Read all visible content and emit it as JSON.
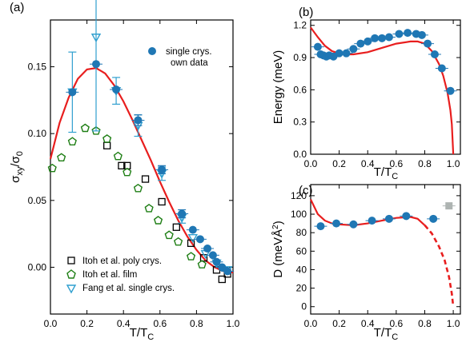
{
  "colors": {
    "fit": "#e81e1e",
    "own": "#1f77b4",
    "itoh_poly": "#000000",
    "itoh_film": "#1e7e14",
    "fang": "#2f9fcf",
    "gray_point": "#aeb4b2",
    "axis": "#000000"
  },
  "chart_data": [
    {
      "panel": "(a)",
      "type": "scatter",
      "xlabel": "T/T_C",
      "ylabel": "σ_xy/σ_0",
      "xlim": [
        0.0,
        1.0
      ],
      "ylim": [
        -0.035,
        0.185
      ],
      "xticks": [
        "0.0",
        "0.2",
        "0.4",
        "0.6",
        "0.8",
        "1.0"
      ],
      "yticks": [
        "0.00",
        "0.05",
        "0.10",
        "0.15"
      ],
      "grid": false,
      "legend_top": {
        "position": "top-right",
        "label_line1": "single crys.",
        "label_line2": "own data"
      },
      "legend_bottom": [
        "Itoh et al. poly crys.",
        "Itoh et al. film",
        "Fang et al. single crys."
      ],
      "series": [
        {
          "name": "single crys. own data",
          "marker": "filled-circle",
          "points": [
            {
              "x": 0.12,
              "y": 0.131,
              "err": 0.0
            },
            {
              "x": 0.25,
              "y": 0.152,
              "err": 0.0
            },
            {
              "x": 0.36,
              "y": 0.133,
              "err": 0.0
            },
            {
              "x": 0.48,
              "y": 0.11,
              "err": 0.004
            },
            {
              "x": 0.61,
              "y": 0.073,
              "err": 0.003
            },
            {
              "x": 0.72,
              "y": 0.04,
              "err": 0.003
            },
            {
              "x": 0.78,
              "y": 0.028,
              "err": 0.0
            },
            {
              "x": 0.82,
              "y": 0.021,
              "err": 0.0
            },
            {
              "x": 0.86,
              "y": 0.014,
              "err": 0.0
            },
            {
              "x": 0.89,
              "y": 0.009,
              "err": 0.0
            },
            {
              "x": 0.91,
              "y": 0.004,
              "err": 0.0
            },
            {
              "x": 0.94,
              "y": 0.0,
              "err": 0.0
            },
            {
              "x": 0.97,
              "y": -0.003,
              "err": 0.0
            }
          ]
        },
        {
          "name": "Itoh et al. poly crys.",
          "marker": "open-square",
          "points": [
            {
              "x": 0.31,
              "y": 0.091
            },
            {
              "x": 0.39,
              "y": 0.076
            },
            {
              "x": 0.42,
              "y": 0.076
            },
            {
              "x": 0.52,
              "y": 0.066
            },
            {
              "x": 0.61,
              "y": 0.049
            },
            {
              "x": 0.69,
              "y": 0.03
            },
            {
              "x": 0.77,
              "y": 0.018
            },
            {
              "x": 0.84,
              "y": 0.007
            },
            {
              "x": 0.91,
              "y": -0.002
            },
            {
              "x": 0.94,
              "y": -0.009
            },
            {
              "x": 0.97,
              "y": -0.005
            }
          ]
        },
        {
          "name": "Itoh et al. film",
          "marker": "open-pentagon",
          "points": [
            {
              "x": 0.01,
              "y": 0.074
            },
            {
              "x": 0.06,
              "y": 0.082
            },
            {
              "x": 0.12,
              "y": 0.094
            },
            {
              "x": 0.19,
              "y": 0.104
            },
            {
              "x": 0.25,
              "y": 0.102
            },
            {
              "x": 0.31,
              "y": 0.096
            },
            {
              "x": 0.37,
              "y": 0.083
            },
            {
              "x": 0.42,
              "y": 0.071
            },
            {
              "x": 0.48,
              "y": 0.059
            },
            {
              "x": 0.54,
              "y": 0.044
            },
            {
              "x": 0.59,
              "y": 0.035
            },
            {
              "x": 0.65,
              "y": 0.024
            },
            {
              "x": 0.7,
              "y": 0.019
            },
            {
              "x": 0.77,
              "y": 0.008
            },
            {
              "x": 0.83,
              "y": 0.002
            }
          ]
        },
        {
          "name": "Fang et al. single crys.",
          "marker": "open-triangle-down",
          "points": [
            {
              "x": 0.12,
              "y": 0.131,
              "err": 0.03
            },
            {
              "x": 0.25,
              "y": 0.172,
              "err": 0.07
            },
            {
              "x": 0.36,
              "y": 0.132,
              "err": 0.01
            },
            {
              "x": 0.48,
              "y": 0.106,
              "err": 0.008
            },
            {
              "x": 0.61,
              "y": 0.07,
              "err": 0.005
            },
            {
              "x": 0.72,
              "y": 0.037,
              "err": 0.004
            },
            {
              "x": 0.78,
              "y": 0.022,
              "err": 0.0
            },
            {
              "x": 0.85,
              "y": 0.01,
              "err": 0.0
            },
            {
              "x": 0.91,
              "y": 0.003,
              "err": 0.0
            },
            {
              "x": 0.97,
              "y": -0.002,
              "err": 0.0
            }
          ]
        }
      ],
      "fit_curve": {
        "x": [
          0.0,
          0.05,
          0.1,
          0.15,
          0.2,
          0.25,
          0.3,
          0.35,
          0.4,
          0.45,
          0.5,
          0.55,
          0.6,
          0.65,
          0.7,
          0.75,
          0.8,
          0.85,
          0.9,
          0.95,
          1.0
        ],
        "y": [
          0.081,
          0.108,
          0.127,
          0.141,
          0.148,
          0.149,
          0.145,
          0.136,
          0.124,
          0.11,
          0.095,
          0.08,
          0.064,
          0.049,
          0.035,
          0.023,
          0.013,
          0.005,
          0.0,
          -0.003,
          -0.004
        ]
      }
    },
    {
      "panel": "(b)",
      "type": "scatter",
      "xlabel": "T/T_C",
      "ylabel": "Energy (meV)",
      "xlim": [
        0.0,
        1.05
      ],
      "ylim": [
        0.0,
        1.25
      ],
      "xticks": [
        "0.0",
        "0.2",
        "0.4",
        "0.6",
        "0.8",
        "1.0"
      ],
      "yticks": [
        "0.0",
        "0.3",
        "0.6",
        "0.9",
        "1.2"
      ],
      "grid": false,
      "series": [
        {
          "name": "",
          "marker": "filled-circle",
          "points": [
            {
              "x": 0.05,
              "y": 1.0
            },
            {
              "x": 0.07,
              "y": 0.93
            },
            {
              "x": 0.09,
              "y": 0.92
            },
            {
              "x": 0.11,
              "y": 0.91
            },
            {
              "x": 0.13,
              "y": 0.92
            },
            {
              "x": 0.16,
              "y": 0.91
            },
            {
              "x": 0.2,
              "y": 0.94
            },
            {
              "x": 0.25,
              "y": 0.94
            },
            {
              "x": 0.3,
              "y": 0.98
            },
            {
              "x": 0.35,
              "y": 1.03
            },
            {
              "x": 0.4,
              "y": 1.05
            },
            {
              "x": 0.45,
              "y": 1.08
            },
            {
              "x": 0.5,
              "y": 1.08
            },
            {
              "x": 0.55,
              "y": 1.09
            },
            {
              "x": 0.62,
              "y": 1.12
            },
            {
              "x": 0.68,
              "y": 1.13
            },
            {
              "x": 0.74,
              "y": 1.12
            },
            {
              "x": 0.78,
              "y": 1.11
            },
            {
              "x": 0.82,
              "y": 1.03
            },
            {
              "x": 0.87,
              "y": 0.93
            },
            {
              "x": 0.92,
              "y": 0.8
            },
            {
              "x": 0.98,
              "y": 0.59
            }
          ]
        }
      ],
      "fit_curve": {
        "x": [
          0.0,
          0.05,
          0.1,
          0.15,
          0.2,
          0.25,
          0.3,
          0.4,
          0.5,
          0.6,
          0.7,
          0.75,
          0.8,
          0.85,
          0.9,
          0.93,
          0.96,
          0.98,
          0.99,
          1.0
        ],
        "y": [
          1.18,
          1.09,
          1.01,
          0.96,
          0.94,
          0.93,
          0.93,
          0.95,
          0.99,
          1.03,
          1.05,
          1.05,
          1.03,
          0.96,
          0.84,
          0.73,
          0.57,
          0.41,
          0.28,
          0.0
        ]
      }
    },
    {
      "panel": "(c)",
      "type": "scatter",
      "xlabel": "T/T_C",
      "ylabel": "D (meVÅ²)",
      "xlim": [
        0.0,
        1.05
      ],
      "ylim": [
        -8,
        132
      ],
      "xticks": [
        "0.0",
        "0.2",
        "0.4",
        "0.6",
        "0.8",
        "1.0"
      ],
      "yticks": [
        "0",
        "20",
        "40",
        "60",
        "80",
        "100",
        "120"
      ],
      "grid": false,
      "series": [
        {
          "name": "",
          "marker": "filled-circle",
          "points": [
            {
              "x": 0.07,
              "y": 87
            },
            {
              "x": 0.18,
              "y": 90
            },
            {
              "x": 0.3,
              "y": 89
            },
            {
              "x": 0.43,
              "y": 93
            },
            {
              "x": 0.55,
              "y": 95
            },
            {
              "x": 0.67,
              "y": 98
            },
            {
              "x": 0.86,
              "y": 95
            }
          ]
        },
        {
          "name": "",
          "marker": "gray-square",
          "points": [
            {
              "x": 0.97,
              "y": 109
            }
          ]
        }
      ],
      "fit_curve_solid": {
        "x": [
          0.0,
          0.05,
          0.1,
          0.15,
          0.2,
          0.3,
          0.4,
          0.5,
          0.6,
          0.7,
          0.75,
          0.8
        ],
        "y": [
          116,
          100,
          93,
          90,
          89,
          88,
          90,
          93,
          96,
          97,
          95,
          88
        ]
      },
      "fit_curve_dashed": {
        "x": [
          0.8,
          0.85,
          0.9,
          0.94,
          0.97,
          0.99,
          1.0
        ],
        "y": [
          88,
          79,
          65,
          50,
          32,
          14,
          0
        ]
      }
    }
  ]
}
